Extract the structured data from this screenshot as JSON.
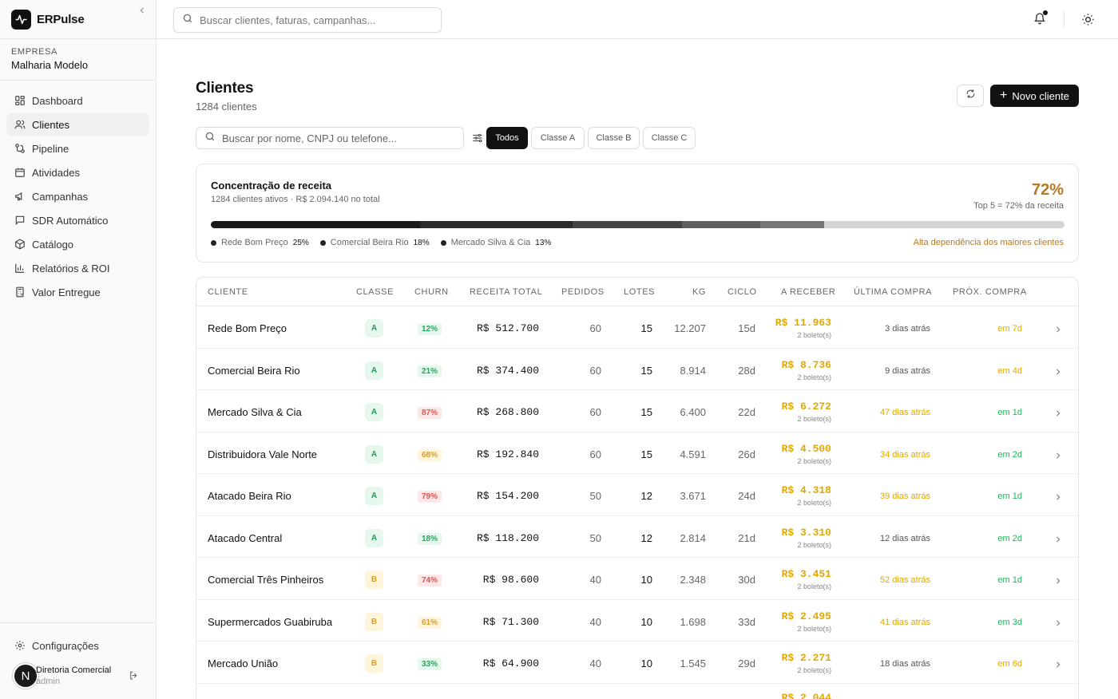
{
  "brand": {
    "name": "ERPulse"
  },
  "company": {
    "label": "EMPRESA",
    "name": "Malharia Modelo"
  },
  "sidebar": {
    "items": [
      {
        "label": "Dashboard",
        "icon": "dashboard-icon"
      },
      {
        "label": "Clientes",
        "icon": "users-icon"
      },
      {
        "label": "Pipeline",
        "icon": "pipeline-icon"
      },
      {
        "label": "Atividades",
        "icon": "calendar-icon"
      },
      {
        "label": "Campanhas",
        "icon": "megaphone-icon"
      },
      {
        "label": "SDR Automático",
        "icon": "chat-icon"
      },
      {
        "label": "Catálogo",
        "icon": "box-icon"
      },
      {
        "label": "Relatórios & ROI",
        "icon": "bar-chart-icon"
      },
      {
        "label": "Valor Entregue",
        "icon": "calculator-icon"
      }
    ],
    "settings_label": "Configurações"
  },
  "user": {
    "initial": "N",
    "name": "Diretoria Comercial",
    "role": "admin"
  },
  "topbar": {
    "search_placeholder": "Buscar clientes, faturas, campanhas..."
  },
  "page": {
    "title": "Clientes",
    "subtitle": "1284 clientes",
    "new_button": "Novo cliente",
    "search_placeholder": "Buscar por nome, CNPJ ou telefone...",
    "filters": [
      "Todos",
      "Classe A",
      "Classe B",
      "Classe C"
    ]
  },
  "concentration": {
    "title": "Concentração de receita",
    "subtitle": "1284 clientes ativos · R$ 2.094.140 no total",
    "percent": "72%",
    "percent_sub": "Top 5 = 72% da receita",
    "warning": "Alta dependência dos maiores clientes",
    "segments": [
      {
        "share": 0.245,
        "color": "#1a1a1a"
      },
      {
        "share": 0.179,
        "color": "#2b2b2b"
      },
      {
        "share": 0.128,
        "color": "#444444"
      },
      {
        "share": 0.092,
        "color": "#5e5e5e"
      },
      {
        "share": 0.074,
        "color": "#757575"
      }
    ],
    "legend": [
      {
        "name": "Rede Bom Preço",
        "pct": "25%"
      },
      {
        "name": "Comercial Beira Rio",
        "pct": "18%"
      },
      {
        "name": "Mercado Silva & Cia",
        "pct": "13%"
      }
    ]
  },
  "table": {
    "headers": [
      "CLIENTE",
      "CLASSE",
      "CHURN",
      "RECEITA TOTAL",
      "PEDIDOS",
      "LOTES",
      "KG",
      "CICLO",
      "A RECEBER",
      "ÚLTIMA COMPRA",
      "PRÓX. COMPRA"
    ],
    "rows": [
      {
        "name": "Rede Bom Preço",
        "classe": "A",
        "churn": "12%",
        "churn_level": "low",
        "receita": "R$ 512.700",
        "pedidos": "60",
        "lotes": "15",
        "kg": "12.207",
        "ciclo": "15d",
        "receber": "R$ 11.963",
        "boletos": "2 boleto(s)",
        "ultima": "3 dias atrás",
        "ultima_warn": false,
        "prox": "em 7d",
        "prox_color": "amber"
      },
      {
        "name": "Comercial Beira Rio",
        "classe": "A",
        "churn": "21%",
        "churn_level": "low",
        "receita": "R$ 374.400",
        "pedidos": "60",
        "lotes": "15",
        "kg": "8.914",
        "ciclo": "28d",
        "receber": "R$ 8.736",
        "boletos": "2 boleto(s)",
        "ultima": "9 dias atrás",
        "ultima_warn": false,
        "prox": "em 4d",
        "prox_color": "amber"
      },
      {
        "name": "Mercado Silva & Cia",
        "classe": "A",
        "churn": "87%",
        "churn_level": "high",
        "receita": "R$ 268.800",
        "pedidos": "60",
        "lotes": "15",
        "kg": "6.400",
        "ciclo": "22d",
        "receber": "R$ 6.272",
        "boletos": "2 boleto(s)",
        "ultima": "47 dias atrás",
        "ultima_warn": true,
        "prox": "em 1d",
        "prox_color": "green"
      },
      {
        "name": "Distribuidora Vale Norte",
        "classe": "A",
        "churn": "68%",
        "churn_level": "mid",
        "receita": "R$ 192.840",
        "pedidos": "60",
        "lotes": "15",
        "kg": "4.591",
        "ciclo": "26d",
        "receber": "R$ 4.500",
        "boletos": "2 boleto(s)",
        "ultima": "34 dias atrás",
        "ultima_warn": true,
        "prox": "em 2d",
        "prox_color": "green"
      },
      {
        "name": "Atacado Beira Rio",
        "classe": "A",
        "churn": "79%",
        "churn_level": "high",
        "receita": "R$ 154.200",
        "pedidos": "50",
        "lotes": "12",
        "kg": "3.671",
        "ciclo": "24d",
        "receber": "R$ 4.318",
        "boletos": "2 boleto(s)",
        "ultima": "39 dias atrás",
        "ultima_warn": true,
        "prox": "em 1d",
        "prox_color": "green"
      },
      {
        "name": "Atacado Central",
        "classe": "A",
        "churn": "18%",
        "churn_level": "low",
        "receita": "R$ 118.200",
        "pedidos": "50",
        "lotes": "12",
        "kg": "2.814",
        "ciclo": "21d",
        "receber": "R$ 3.310",
        "boletos": "2 boleto(s)",
        "ultima": "12 dias atrás",
        "ultima_warn": false,
        "prox": "em 2d",
        "prox_color": "green"
      },
      {
        "name": "Comercial Três Pinheiros",
        "classe": "B",
        "churn": "74%",
        "churn_level": "high",
        "receita": "R$ 98.600",
        "pedidos": "40",
        "lotes": "10",
        "kg": "2.348",
        "ciclo": "30d",
        "receber": "R$ 3.451",
        "boletos": "2 boleto(s)",
        "ultima": "52 dias atrás",
        "ultima_warn": true,
        "prox": "em 1d",
        "prox_color": "green"
      },
      {
        "name": "Supermercados Guabiruba",
        "classe": "B",
        "churn": "61%",
        "churn_level": "mid",
        "receita": "R$ 71.300",
        "pedidos": "40",
        "lotes": "10",
        "kg": "1.698",
        "ciclo": "33d",
        "receber": "R$ 2.495",
        "boletos": "2 boleto(s)",
        "ultima": "41 dias atrás",
        "ultima_warn": true,
        "prox": "em 3d",
        "prox_color": "green"
      },
      {
        "name": "Mercado União",
        "classe": "B",
        "churn": "33%",
        "churn_level": "low",
        "receita": "R$ 64.900",
        "pedidos": "40",
        "lotes": "10",
        "kg": "1.545",
        "ciclo": "29d",
        "receber": "R$ 2.271",
        "boletos": "2 boleto(s)",
        "ultima": "18 dias atrás",
        "ultima_warn": false,
        "prox": "em 6d",
        "prox_color": "amber"
      }
    ],
    "peek_value": "R$ 2.044"
  }
}
